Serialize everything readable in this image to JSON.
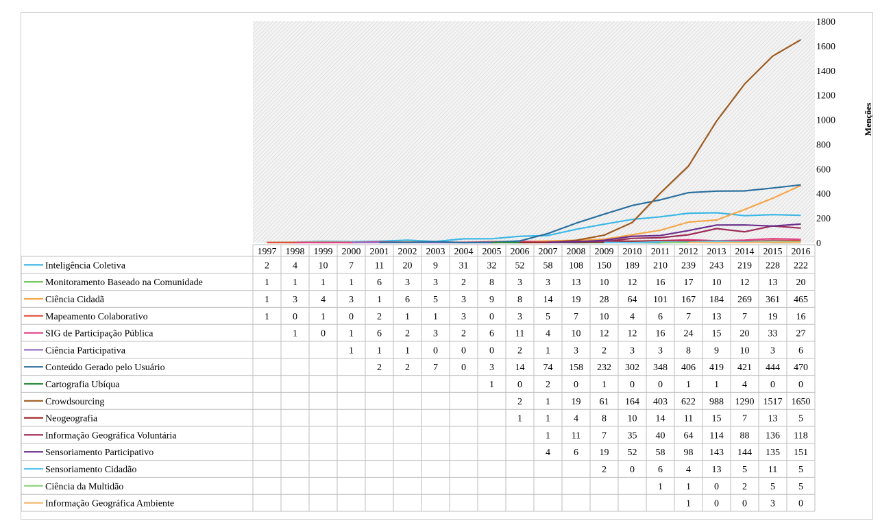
{
  "chart_data": {
    "type": "line",
    "ylabel": "Menções",
    "ylim": [
      0,
      1800
    ],
    "y_ticks": [
      0,
      200,
      400,
      600,
      800,
      1000,
      1200,
      1400,
      1600,
      1800
    ],
    "x": [
      "1997",
      "1998",
      "1999",
      "2000",
      "2001",
      "2002",
      "2003",
      "2004",
      "2005",
      "2006",
      "2007",
      "2008",
      "2009",
      "2010",
      "2011",
      "2012",
      "2013",
      "2014",
      "2015",
      "2016"
    ],
    "grid": "hatched plot background",
    "legend": "data table below chart",
    "series": [
      {
        "name": "Inteligência Coletiva",
        "color": "#3cb7e6",
        "values": [
          2,
          4,
          10,
          7,
          11,
          20,
          9,
          31,
          32,
          52,
          58,
          108,
          150,
          189,
          210,
          239,
          243,
          219,
          228,
          222
        ]
      },
      {
        "name": "Monitoramento Baseado na Comunidade",
        "color": "#6abf4b",
        "values": [
          1,
          1,
          1,
          1,
          6,
          3,
          3,
          2,
          8,
          3,
          3,
          13,
          10,
          12,
          16,
          17,
          10,
          12,
          13,
          20
        ]
      },
      {
        "name": "Ciência Cidadã",
        "color": "#f4a64a",
        "values": [
          1,
          3,
          4,
          3,
          1,
          6,
          5,
          3,
          9,
          8,
          14,
          19,
          28,
          64,
          101,
          167,
          184,
          269,
          361,
          465
        ]
      },
      {
        "name": "Mapeamento Colaborativo",
        "color": "#e0503a",
        "values": [
          1,
          0,
          1,
          0,
          2,
          1,
          1,
          3,
          0,
          3,
          5,
          7,
          10,
          4,
          6,
          7,
          13,
          7,
          19,
          16
        ]
      },
      {
        "name": "SIG de Participação Pública",
        "color": "#e0478a",
        "values": [
          null,
          1,
          0,
          1,
          6,
          2,
          3,
          2,
          6,
          11,
          4,
          10,
          12,
          12,
          16,
          24,
          15,
          20,
          33,
          27
        ]
      },
      {
        "name": "Ciência Participativa",
        "color": "#9a6fc8",
        "values": [
          null,
          null,
          null,
          1,
          1,
          1,
          0,
          0,
          0,
          2,
          1,
          3,
          2,
          3,
          3,
          8,
          9,
          10,
          3,
          6
        ]
      },
      {
        "name": "Conteúdo Gerado pelo Usuário",
        "color": "#2a6f9e",
        "values": [
          null,
          null,
          null,
          null,
          2,
          2,
          7,
          0,
          3,
          14,
          74,
          158,
          232,
          302,
          348,
          406,
          419,
          421,
          444,
          470
        ]
      },
      {
        "name": "Cartografia Ubíqua",
        "color": "#2e8b3e",
        "values": [
          null,
          null,
          null,
          null,
          null,
          null,
          null,
          null,
          1,
          0,
          2,
          0,
          1,
          0,
          0,
          1,
          1,
          4,
          0,
          0
        ]
      },
      {
        "name": "Crowdsourcing",
        "color": "#9c5a1e",
        "values": [
          null,
          null,
          null,
          null,
          null,
          null,
          null,
          null,
          null,
          2,
          1,
          19,
          61,
          164,
          403,
          622,
          988,
          1290,
          1517,
          1650
        ]
      },
      {
        "name": "Neogeografia",
        "color": "#a0282a",
        "values": [
          null,
          null,
          null,
          null,
          null,
          null,
          null,
          null,
          null,
          1,
          1,
          4,
          8,
          10,
          14,
          11,
          15,
          7,
          13,
          5
        ]
      },
      {
        "name": "Informação Geográfica Voluntária",
        "color": "#9c2a55",
        "values": [
          null,
          null,
          null,
          null,
          null,
          null,
          null,
          null,
          null,
          null,
          1,
          11,
          7,
          35,
          40,
          64,
          114,
          88,
          136,
          118
        ]
      },
      {
        "name": "Sensoriamento Participativo",
        "color": "#6a2e8a",
        "values": [
          null,
          null,
          null,
          null,
          null,
          null,
          null,
          null,
          null,
          null,
          4,
          6,
          19,
          52,
          58,
          98,
          143,
          144,
          135,
          151
        ]
      },
      {
        "name": "Sensoriamento Cidadão",
        "color": "#5bc6f0",
        "values": [
          null,
          null,
          null,
          null,
          null,
          null,
          null,
          null,
          null,
          null,
          null,
          null,
          2,
          0,
          6,
          4,
          13,
          5,
          11,
          5
        ]
      },
      {
        "name": "Ciência da Multidão",
        "color": "#8ed07a",
        "values": [
          null,
          null,
          null,
          null,
          null,
          null,
          null,
          null,
          null,
          null,
          null,
          null,
          null,
          null,
          1,
          1,
          0,
          2,
          5,
          5
        ]
      },
      {
        "name": "Informação Geográfica Ambiente",
        "color": "#f7b870",
        "values": [
          null,
          null,
          null,
          null,
          null,
          null,
          null,
          null,
          null,
          null,
          null,
          null,
          null,
          null,
          null,
          1,
          0,
          0,
          3,
          0
        ]
      }
    ]
  }
}
